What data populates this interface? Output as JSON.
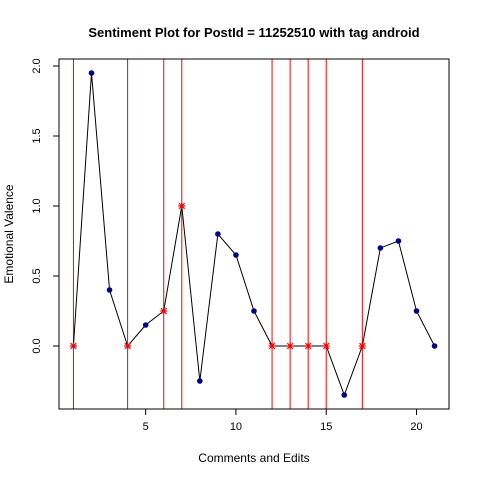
{
  "chart_data": {
    "type": "line",
    "title": "Sentiment Plot for PostId =  11252510  with tag  android",
    "xlabel": "Comments and Edits",
    "ylabel": "Emotional Valence",
    "xlim": [
      0.2,
      21.8
    ],
    "ylim": [
      -0.45,
      2.05
    ],
    "xticks": [
      5,
      10,
      15,
      20
    ],
    "yticks": [
      0.0,
      0.5,
      1.0,
      1.5,
      2.0
    ],
    "ytick_labels": [
      "0.0",
      "0.5",
      "1.0",
      "1.5",
      "2.0"
    ],
    "x": [
      1,
      2,
      3,
      4,
      5,
      6,
      7,
      8,
      9,
      10,
      11,
      12,
      13,
      14,
      15,
      16,
      17,
      18,
      19,
      20,
      21
    ],
    "values": [
      0.0,
      1.95,
      0.4,
      0.0,
      0.15,
      0.25,
      1.0,
      -0.25,
      0.8,
      0.65,
      0.25,
      0.0,
      0.0,
      0.0,
      0.0,
      -0.35,
      0.0,
      0.7,
      0.75,
      0.25,
      0.0
    ],
    "edit_points": [
      1,
      4,
      6,
      7,
      12,
      13,
      14,
      15,
      17
    ],
    "colors": {
      "line": "#000000",
      "comment_marker": "#00008b",
      "edit_marker": "#ff0000",
      "edit_line": "#ff0000"
    }
  }
}
